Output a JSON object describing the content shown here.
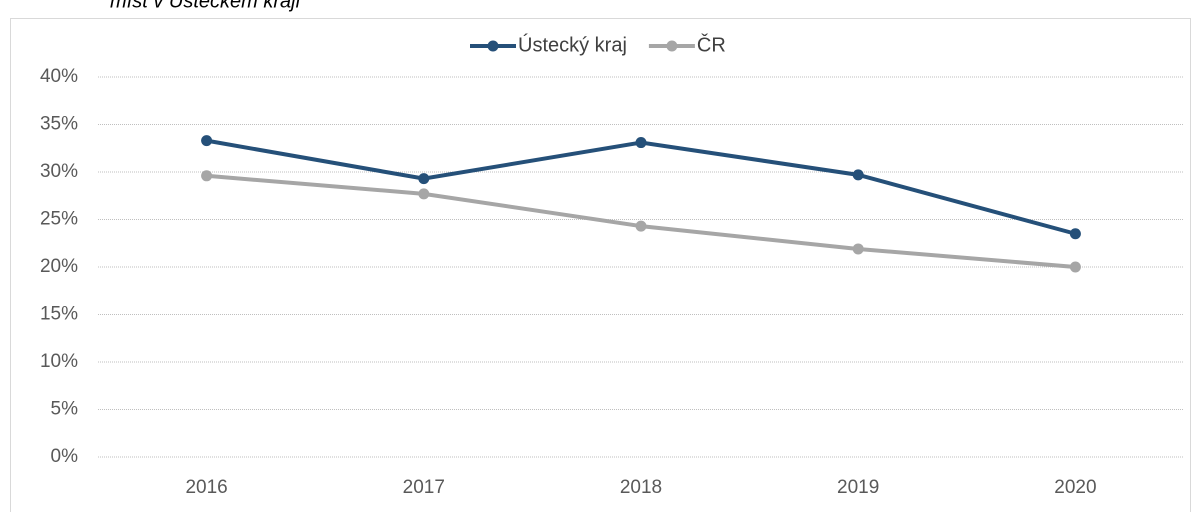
{
  "chart_data": {
    "type": "line",
    "title": "míst v Ústeckém kraji",
    "categories": [
      "2016",
      "2017",
      "2018",
      "2019",
      "2020"
    ],
    "series": [
      {
        "name": "Ústecký kraj",
        "color": "#255079",
        "values": [
          33.3,
          29.3,
          33.1,
          29.7,
          23.5
        ]
      },
      {
        "name": "ČR",
        "color": "#a6a6a6",
        "values": [
          29.6,
          27.7,
          24.3,
          21.9,
          20.0
        ]
      }
    ],
    "ylim": [
      0,
      40
    ],
    "yticks": [
      {
        "value": 0,
        "label": "0%"
      },
      {
        "value": 5,
        "label": "5%"
      },
      {
        "value": 10,
        "label": "10%"
      },
      {
        "value": 15,
        "label": "15%"
      },
      {
        "value": 20,
        "label": "20%"
      },
      {
        "value": 25,
        "label": "25%"
      },
      {
        "value": 30,
        "label": "30%"
      },
      {
        "value": 35,
        "label": "35%"
      },
      {
        "value": 40,
        "label": "40%"
      }
    ],
    "grid": true,
    "legend": "top"
  }
}
